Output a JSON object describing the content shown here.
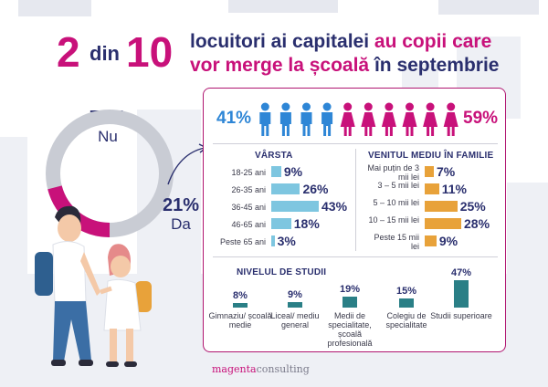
{
  "headline": {
    "num1": "2",
    "din": "din",
    "num2": "10",
    "line1_plain": "locuitori ai capitalei ",
    "line1_hi": "au copii care",
    "line2_hi": "vor merge la școală",
    "line2_plain": " în septembrie"
  },
  "donut": {
    "no_pct": "79%",
    "no_label": "Nu",
    "yes_pct": "21%",
    "yes_label": "Da",
    "no_value": 79,
    "yes_value": 21,
    "color_no": "#c9ccd4",
    "color_yes": "#c8117a"
  },
  "gender": {
    "male_pct": "41%",
    "female_pct": "59%",
    "male_color": "#2e86d6",
    "female_color": "#c8117a",
    "male_icons": 4,
    "female_icons": 6
  },
  "chart_data": [
    {
      "type": "bar",
      "title": "VÂRSTA",
      "categories": [
        "18-25 ani",
        "26-35 ani",
        "36-45 ani",
        "46-65 ani",
        "Peste 65 ani"
      ],
      "values": [
        9,
        26,
        43,
        18,
        3
      ],
      "labels": [
        "9%",
        "26%",
        "43%",
        "18%",
        "3%"
      ],
      "color": "#7ec6e0"
    },
    {
      "type": "bar",
      "title": "VENITUL MEDIU ÎN FAMILIE",
      "categories": [
        "Mai puțin de 3 mii lei",
        "3 – 5 mii lei",
        "5 – 10 mii lei",
        "10 – 15 mii lei",
        "Peste 15 mii lei"
      ],
      "values": [
        7,
        11,
        25,
        28,
        9
      ],
      "labels": [
        "7%",
        "11%",
        "25%",
        "28%",
        "9%"
      ],
      "color": "#e8a23a"
    },
    {
      "type": "bar",
      "title": "NIVELUL DE STUDII",
      "categories": [
        "Gimnaziu/ școală medie",
        "Liceal/ mediu general",
        "Medii de specialitate, școală profesională",
        "Colegiu de specialitate",
        "Studii superioare"
      ],
      "values": [
        8,
        9,
        19,
        15,
        47
      ],
      "labels": [
        "8%",
        "9%",
        "19%",
        "15%",
        "47%"
      ],
      "color": "#2a7f86"
    }
  ],
  "brand": {
    "part1": "magenta",
    "part2": "consulting"
  }
}
